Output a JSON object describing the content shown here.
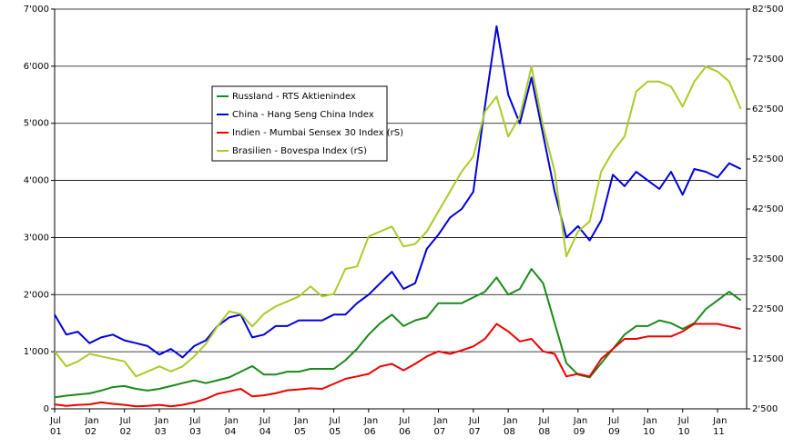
{
  "chart_data": {
    "type": "line",
    "x": [
      "2001-07",
      "2001-09",
      "2001-11",
      "2002-01",
      "2002-03",
      "2002-05",
      "2002-07",
      "2002-09",
      "2002-11",
      "2003-01",
      "2003-03",
      "2003-05",
      "2003-07",
      "2003-09",
      "2003-11",
      "2004-01",
      "2004-03",
      "2004-05",
      "2004-07",
      "2004-09",
      "2004-11",
      "2005-01",
      "2005-03",
      "2005-05",
      "2005-07",
      "2005-09",
      "2005-11",
      "2006-01",
      "2006-03",
      "2006-05",
      "2006-07",
      "2006-09",
      "2006-11",
      "2007-01",
      "2007-03",
      "2007-05",
      "2007-07",
      "2007-09",
      "2007-11",
      "2008-01",
      "2008-03",
      "2008-05",
      "2008-07",
      "2008-09",
      "2008-11",
      "2009-01",
      "2009-03",
      "2009-05",
      "2009-07",
      "2009-09",
      "2009-11",
      "2010-01",
      "2010-03",
      "2010-05",
      "2010-07",
      "2010-09",
      "2010-11",
      "2011-01",
      "2011-03",
      "2011-05"
    ],
    "xlim": [
      "2001-07",
      "2011-06"
    ],
    "xticks": [
      {
        "value": "2001-07",
        "label": "Jul 01"
      },
      {
        "value": "2002-01",
        "label": "Jan 02"
      },
      {
        "value": "2002-07",
        "label": "Jul 02"
      },
      {
        "value": "2003-01",
        "label": "Jan 03"
      },
      {
        "value": "2003-07",
        "label": "Jul 03"
      },
      {
        "value": "2004-01",
        "label": "Jan 04"
      },
      {
        "value": "2004-07",
        "label": "Jul 04"
      },
      {
        "value": "2005-01",
        "label": "Jan 05"
      },
      {
        "value": "2005-07",
        "label": "Jul 05"
      },
      {
        "value": "2006-01",
        "label": "Jan 06"
      },
      {
        "value": "2006-07",
        "label": "Jul 06"
      },
      {
        "value": "2007-01",
        "label": "Jan 07"
      },
      {
        "value": "2007-07",
        "label": "Jul 07"
      },
      {
        "value": "2008-01",
        "label": "Jan 08"
      },
      {
        "value": "2008-07",
        "label": "Jul 08"
      },
      {
        "value": "2009-01",
        "label": "Jan 09"
      },
      {
        "value": "2009-07",
        "label": "Jul 09"
      },
      {
        "value": "2010-01",
        "label": "Jan 10"
      },
      {
        "value": "2010-07",
        "label": "Jul 10"
      },
      {
        "value": "2011-01",
        "label": "Jan 11"
      }
    ],
    "ylim": [
      0,
      7000
    ],
    "yticks": [
      0,
      {
        "value": 1000,
        "label": "1'000"
      },
      {
        "value": 2000,
        "label": "2'000"
      },
      {
        "value": 3000,
        "label": "3'000"
      },
      {
        "value": 4000,
        "label": "4'000"
      },
      {
        "value": 5000,
        "label": "5'000"
      },
      {
        "value": 6000,
        "label": "6'000"
      },
      {
        "value": 7000,
        "label": "7'000"
      }
    ],
    "y2lim": [
      2500,
      82500
    ],
    "y2ticks": [
      {
        "value": 2500,
        "label": "2'500"
      },
      {
        "value": 12500,
        "label": "12'500"
      },
      {
        "value": 22500,
        "label": "22'500"
      },
      {
        "value": 32500,
        "label": "32'500"
      },
      {
        "value": 42500,
        "label": "42'500"
      },
      {
        "value": 52500,
        "label": "52'500"
      },
      {
        "value": 62500,
        "label": "62'500"
      },
      {
        "value": 72500,
        "label": "72'500"
      },
      {
        "value": 82500,
        "label": "82'500"
      }
    ],
    "grid": true,
    "series": [
      {
        "name": "Russland - RTS Aktienindex",
        "color": "#1a8a1a",
        "values": [
          200,
          230,
          250,
          270,
          320,
          380,
          400,
          350,
          320,
          350,
          400,
          450,
          500,
          450,
          500,
          550,
          650,
          750,
          600,
          600,
          650,
          650,
          700,
          700,
          700,
          850,
          1050,
          1300,
          1500,
          1650,
          1450,
          1550,
          1600,
          1850,
          1850,
          1850,
          1950,
          2050,
          2300,
          2000,
          2100,
          2450,
          2200,
          1500,
          800,
          600,
          550,
          800,
          1050,
          1300,
          1450,
          1450,
          1550,
          1500,
          1400,
          1500,
          1750,
          1900,
          2050,
          1900
        ]
      },
      {
        "name": "China - Hang Seng China Index",
        "color": "#0000dd",
        "values": [
          1650,
          1300,
          1350,
          1150,
          1250,
          1300,
          1200,
          1150,
          1100,
          950,
          1050,
          900,
          1100,
          1200,
          1450,
          1600,
          1650,
          1250,
          1300,
          1450,
          1450,
          1550,
          1550,
          1550,
          1650,
          1650,
          1850,
          2000,
          2200,
          2400,
          2100,
          2200,
          2800,
          3050,
          3350,
          3500,
          3800,
          5300,
          6700,
          5500,
          5000,
          5800,
          4800,
          3800,
          3000,
          3200,
          2950,
          3300,
          4100,
          3900,
          4150,
          4000,
          3850,
          4150,
          3750,
          4200,
          4150,
          4050,
          4300,
          4200
        ]
      },
      {
        "name": "Indien - Mumbai Sensex 30 Index (rS)",
        "color": "#ee0000",
        "axis": "y2",
        "values": [
          3400,
          3100,
          3300,
          3400,
          3800,
          3500,
          3300,
          3000,
          3100,
          3300,
          3000,
          3300,
          3800,
          4500,
          5500,
          6000,
          6500,
          5000,
          5200,
          5600,
          6200,
          6400,
          6600,
          6500,
          7500,
          8500,
          9000,
          9500,
          11000,
          11500,
          10200,
          11500,
          13000,
          14000,
          13500,
          14200,
          15000,
          16500,
          19500,
          18000,
          16000,
          16500,
          14000,
          13500,
          9000,
          9500,
          9000,
          12500,
          14500,
          16500,
          16500,
          17000,
          17000,
          17000,
          18000,
          19500,
          19500,
          19500,
          19000,
          18500
        ]
      },
      {
        "name": "Brasilien - Bovespa Index (rS)",
        "color": "#a8cc28",
        "axis": "y2",
        "values": [
          14000,
          11000,
          12000,
          13500,
          13000,
          12500,
          12000,
          9000,
          10000,
          11000,
          10000,
          11000,
          13000,
          15500,
          19000,
          22000,
          21500,
          19000,
          21500,
          23000,
          24000,
          25000,
          27000,
          25000,
          25500,
          30500,
          31000,
          37000,
          38000,
          39000,
          35000,
          35500,
          38000,
          42000,
          46000,
          50000,
          53000,
          62000,
          65000,
          57000,
          61000,
          71000,
          59000,
          50000,
          33000,
          38000,
          40000,
          50000,
          54000,
          57000,
          66000,
          68000,
          68000,
          67000,
          63000,
          68000,
          71000,
          70000,
          68000,
          62500
        ]
      }
    ]
  }
}
